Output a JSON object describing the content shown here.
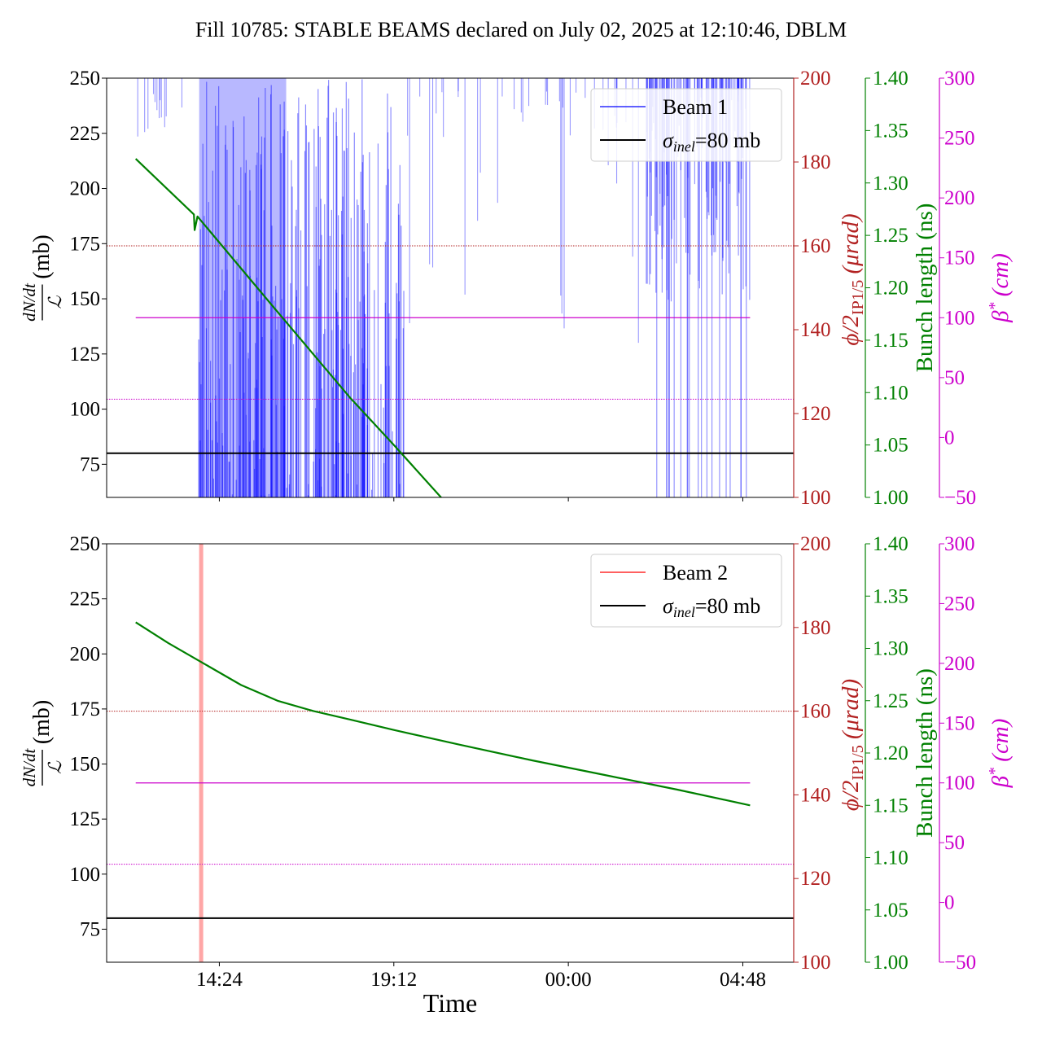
{
  "chart_data": {
    "title": "Fill 10785: STABLE BEAMS declared on July 02, 2025 at 12:10:46, DBLM",
    "xlabel": "Time",
    "x_ticks": [
      "14:24",
      "19:12",
      "00:00",
      "04:48"
    ],
    "x_tick_hours": [
      14.4,
      19.2,
      24.0,
      28.8
    ],
    "x_range_hours": [
      11.3,
      30.2
    ],
    "colors": {
      "beam1": "#0000ff",
      "beam2": "#ff0000",
      "sigma": "#000000",
      "phi": "#b22222",
      "bunch": "#008000",
      "beta": "#cc00cc"
    },
    "axes": {
      "left": {
        "label_numerator": "dN/dt",
        "label_denominator": "ℒ",
        "label_unit": "(mb)",
        "range": [
          60,
          250
        ],
        "ticks": [
          75,
          100,
          125,
          150,
          175,
          200,
          225,
          250
        ]
      },
      "phi": {
        "label_phi": "ϕ/2",
        "label_sub": "IP1/5",
        "label_unit": "(μrad)",
        "range": [
          100,
          200
        ],
        "ticks": [
          100,
          120,
          140,
          160,
          180,
          200
        ]
      },
      "bunch": {
        "label": "Bunch length (ns)",
        "range": [
          1.0,
          1.4
        ],
        "ticks": [
          1.0,
          1.05,
          1.1,
          1.15,
          1.2,
          1.25,
          1.3,
          1.35,
          1.4
        ],
        "tick_labels": [
          "1.00",
          "1.05",
          "1.10",
          "1.15",
          "1.20",
          "1.25",
          "1.30",
          "1.35",
          "1.40"
        ]
      },
      "beta": {
        "label_beta": "β",
        "label_sup": "*",
        "label_unit": "(cm)",
        "range": [
          -50,
          300
        ],
        "ticks": [
          -50,
          0,
          50,
          100,
          150,
          200,
          250,
          300
        ],
        "tick_labels": [
          "−50",
          "0",
          "50",
          "100",
          "150",
          "200",
          "250",
          "300"
        ]
      }
    },
    "panels": [
      {
        "type": "line",
        "legend": {
          "beam_label": "Beam 1",
          "sigma_symbol": "σ",
          "sigma_sub": "inel",
          "sigma_text": "=80 mb"
        },
        "sigma_inel_mb": 80,
        "crossing_angle_urad": 160,
        "beta_star_cm": 100,
        "beta_dotted_cm": 32,
        "beam_losses": {
          "dense_band_hours": [
            13.8,
            19.5
          ],
          "sparse_band_hours": [
            26.1,
            29.0
          ],
          "floor_mb": 60,
          "peak_mb": 250
        },
        "bunch_length": [
          {
            "t": 12.1,
            "ns": 1.323
          },
          {
            "t": 13.7,
            "ns": 1.27
          },
          {
            "t": 13.72,
            "ns": 1.255
          },
          {
            "t": 13.8,
            "ns": 1.268
          },
          {
            "t": 16.0,
            "ns": 1.177
          },
          {
            "t": 18.0,
            "ns": 1.095
          },
          {
            "t": 19.2,
            "ns": 1.05
          },
          {
            "t": 20.5,
            "ns": 1.0
          }
        ]
      },
      {
        "type": "line",
        "legend": {
          "beam_label": "Beam 2",
          "sigma_symbol": "σ",
          "sigma_sub": "inel",
          "sigma_text": "=80 mb"
        },
        "sigma_inel_mb": 80,
        "crossing_angle_urad": 160,
        "beta_star_cm": 100,
        "beta_dotted_cm": 32,
        "beam_losses": {
          "spike_hours": 13.9
        },
        "bunch_length": [
          {
            "t": 12.1,
            "ns": 1.325
          },
          {
            "t": 13.0,
            "ns": 1.305
          },
          {
            "t": 14.0,
            "ns": 1.285
          },
          {
            "t": 15.0,
            "ns": 1.265
          },
          {
            "t": 16.0,
            "ns": 1.25
          },
          {
            "t": 17.0,
            "ns": 1.24
          },
          {
            "t": 18.0,
            "ns": 1.232
          },
          {
            "t": 19.2,
            "ns": 1.222
          },
          {
            "t": 21.0,
            "ns": 1.208
          },
          {
            "t": 23.0,
            "ns": 1.193
          },
          {
            "t": 25.0,
            "ns": 1.179
          },
          {
            "t": 27.0,
            "ns": 1.165
          },
          {
            "t": 29.0,
            "ns": 1.15
          }
        ]
      }
    ]
  }
}
